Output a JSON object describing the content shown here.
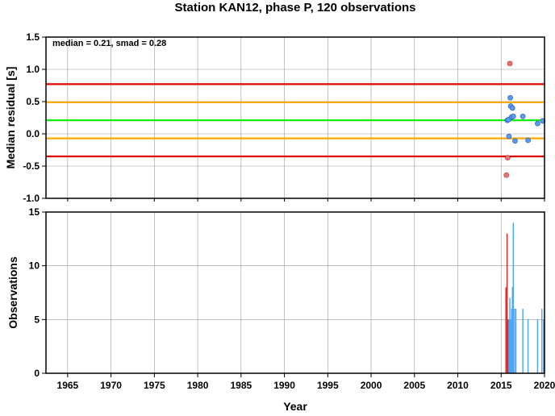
{
  "colors": {
    "median_line": "#00ee00",
    "smad1_line": "#ffa500",
    "smad2_line": "#dd0000",
    "point_normal": "#5b9cf0",
    "point_outlier": "#f07070",
    "bar_normal": "#4da6f5",
    "bar_outlier": "#dd2222",
    "grid": "#999999"
  },
  "chart_data": [
    {
      "type": "scatter",
      "title": "Station KAN12, phase P, 120 observations",
      "ylabel": "Median residual [s]",
      "annotation": "median = 0.21, smad = 0.28",
      "xlim": [
        1962.5,
        2020
      ],
      "ylim": [
        -1.0,
        1.5
      ],
      "yticks": [
        "-1.0",
        "-0.5",
        "0.0",
        "0.5",
        "1.0",
        "1.5"
      ],
      "xticks": [
        1965,
        1970,
        1975,
        1980,
        1985,
        1990,
        1995,
        2000,
        2005,
        2010,
        2015,
        2020
      ],
      "grid": true,
      "hlines": {
        "median": 0.21,
        "smad1_upper": 0.49,
        "smad1_lower": -0.07,
        "smad2_upper": 0.77,
        "smad2_lower": -0.35
      },
      "points": [
        {
          "x": 2015.6,
          "y": -0.64,
          "outlier": true
        },
        {
          "x": 2015.75,
          "y": -0.37,
          "outlier": true
        },
        {
          "x": 2015.7,
          "y": 0.21,
          "outlier": false
        },
        {
          "x": 2015.85,
          "y": 0.22,
          "outlier": false
        },
        {
          "x": 2015.9,
          "y": -0.04,
          "outlier": false
        },
        {
          "x": 2016.0,
          "y": 1.09,
          "outlier": true
        },
        {
          "x": 2016.05,
          "y": 0.56,
          "outlier": false
        },
        {
          "x": 2016.1,
          "y": 0.43,
          "outlier": false
        },
        {
          "x": 2016.2,
          "y": 0.26,
          "outlier": false
        },
        {
          "x": 2016.3,
          "y": 0.4,
          "outlier": false
        },
        {
          "x": 2016.4,
          "y": 0.27,
          "outlier": false
        },
        {
          "x": 2016.6,
          "y": -0.11,
          "outlier": false
        },
        {
          "x": 2017.5,
          "y": 0.27,
          "outlier": false
        },
        {
          "x": 2018.1,
          "y": -0.1,
          "outlier": false
        },
        {
          "x": 2019.2,
          "y": 0.16,
          "outlier": false
        },
        {
          "x": 2019.8,
          "y": 0.2,
          "outlier": false
        }
      ]
    },
    {
      "type": "bar",
      "ylabel": "Observations",
      "xlabel": "Year",
      "xlim": [
        1962.5,
        2020
      ],
      "ylim": [
        0,
        15
      ],
      "yticks": [
        "0",
        "5",
        "10",
        "15"
      ],
      "xticks": [
        1965,
        1970,
        1975,
        1980,
        1985,
        1990,
        1995,
        2000,
        2005,
        2010,
        2015,
        2020
      ],
      "grid": true,
      "bars": [
        {
          "x": 2015.55,
          "value": 8,
          "outlier": true
        },
        {
          "x": 2015.68,
          "value": 13,
          "outlier": true
        },
        {
          "x": 2015.8,
          "value": 5,
          "outlier": true
        },
        {
          "x": 2015.9,
          "value": 5,
          "outlier": false
        },
        {
          "x": 2016.0,
          "value": 7,
          "outlier": false
        },
        {
          "x": 2016.1,
          "value": 5,
          "outlier": false
        },
        {
          "x": 2016.2,
          "value": 6,
          "outlier": false
        },
        {
          "x": 2016.3,
          "value": 8,
          "outlier": false
        },
        {
          "x": 2016.4,
          "value": 14,
          "outlier": false
        },
        {
          "x": 2016.55,
          "value": 6,
          "outlier": false
        },
        {
          "x": 2016.7,
          "value": 6,
          "outlier": false
        },
        {
          "x": 2017.5,
          "value": 6,
          "outlier": false
        },
        {
          "x": 2018.1,
          "value": 5,
          "outlier": false
        },
        {
          "x": 2019.2,
          "value": 5,
          "outlier": false
        },
        {
          "x": 2019.7,
          "value": 6,
          "outlier": false
        },
        {
          "x": 2019.9,
          "value": 5,
          "outlier": false
        }
      ]
    }
  ]
}
